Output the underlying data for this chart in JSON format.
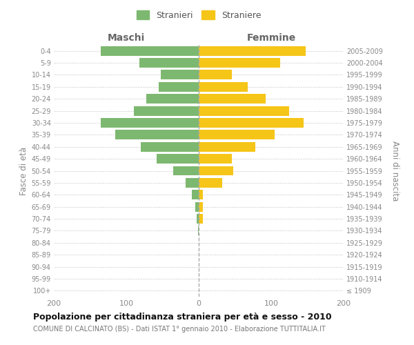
{
  "age_groups": [
    "100+",
    "95-99",
    "90-94",
    "85-89",
    "80-84",
    "75-79",
    "70-74",
    "65-69",
    "60-64",
    "55-59",
    "50-54",
    "45-49",
    "40-44",
    "35-39",
    "30-34",
    "25-29",
    "20-24",
    "15-19",
    "10-14",
    "5-9",
    "0-4"
  ],
  "birth_years": [
    "≤ 1909",
    "1910-1914",
    "1915-1919",
    "1920-1924",
    "1925-1929",
    "1930-1934",
    "1935-1939",
    "1940-1944",
    "1945-1949",
    "1950-1954",
    "1955-1959",
    "1960-1964",
    "1965-1969",
    "1970-1974",
    "1975-1979",
    "1980-1984",
    "1985-1989",
    "1990-1994",
    "1995-1999",
    "2000-2004",
    "2005-2009"
  ],
  "maschi": [
    0,
    0,
    0,
    0,
    0,
    1,
    3,
    5,
    10,
    18,
    35,
    58,
    80,
    115,
    135,
    90,
    72,
    55,
    52,
    82,
    135
  ],
  "femmine": [
    0,
    0,
    0,
    0,
    0,
    0,
    6,
    6,
    6,
    32,
    48,
    46,
    78,
    105,
    145,
    125,
    92,
    68,
    46,
    112,
    148
  ],
  "color_maschi": "#7db870",
  "color_femmine": "#f5c518",
  "title": "Popolazione per cittadinanza straniera per età e sesso - 2010",
  "subtitle": "COMUNE DI CALCINATO (BS) - Dati ISTAT 1° gennaio 2010 - Elaborazione TUTTITALIA.IT",
  "label_maschi": "Maschi",
  "label_femmine": "Femmine",
  "ylabel_left": "Fasce di età",
  "ylabel_right": "Anni di nascita",
  "legend_maschi": "Stranieri",
  "legend_femmine": "Straniere",
  "xlim": 200,
  "background_color": "#ffffff",
  "grid_color": "#cccccc",
  "bar_height": 0.8
}
